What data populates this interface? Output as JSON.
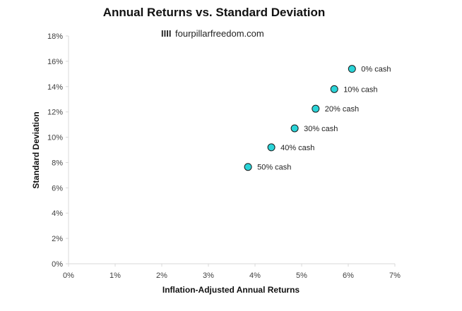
{
  "chart_data": {
    "type": "scatter",
    "title": "Annual Returns vs. Standard Deviation",
    "watermark": {
      "mark": "IIII",
      "text": "fourpillarfreedom.com"
    },
    "xlabel": "Inflation-Adjusted Annual Returns",
    "ylabel": "Standard Deviation",
    "xlim": [
      0,
      7
    ],
    "ylim": [
      0,
      18
    ],
    "x_ticks": [
      "0%",
      "1%",
      "2%",
      "3%",
      "4%",
      "5%",
      "6%",
      "7%"
    ],
    "y_ticks": [
      "0%",
      "2%",
      "4%",
      "6%",
      "8%",
      "10%",
      "12%",
      "14%",
      "16%",
      "18%"
    ],
    "grid": false,
    "marker_color": "#2ad4d8",
    "marker_edge_color": "#1a1a1a",
    "points": [
      {
        "x": 6.08,
        "y": 15.4,
        "label": "0% cash"
      },
      {
        "x": 5.7,
        "y": 13.8,
        "label": "10% cash"
      },
      {
        "x": 5.3,
        "y": 12.25,
        "label": "20% cash"
      },
      {
        "x": 4.85,
        "y": 10.7,
        "label": "30% cash"
      },
      {
        "x": 4.35,
        "y": 9.2,
        "label": "40% cash"
      },
      {
        "x": 3.85,
        "y": 7.65,
        "label": "50% cash"
      }
    ]
  }
}
